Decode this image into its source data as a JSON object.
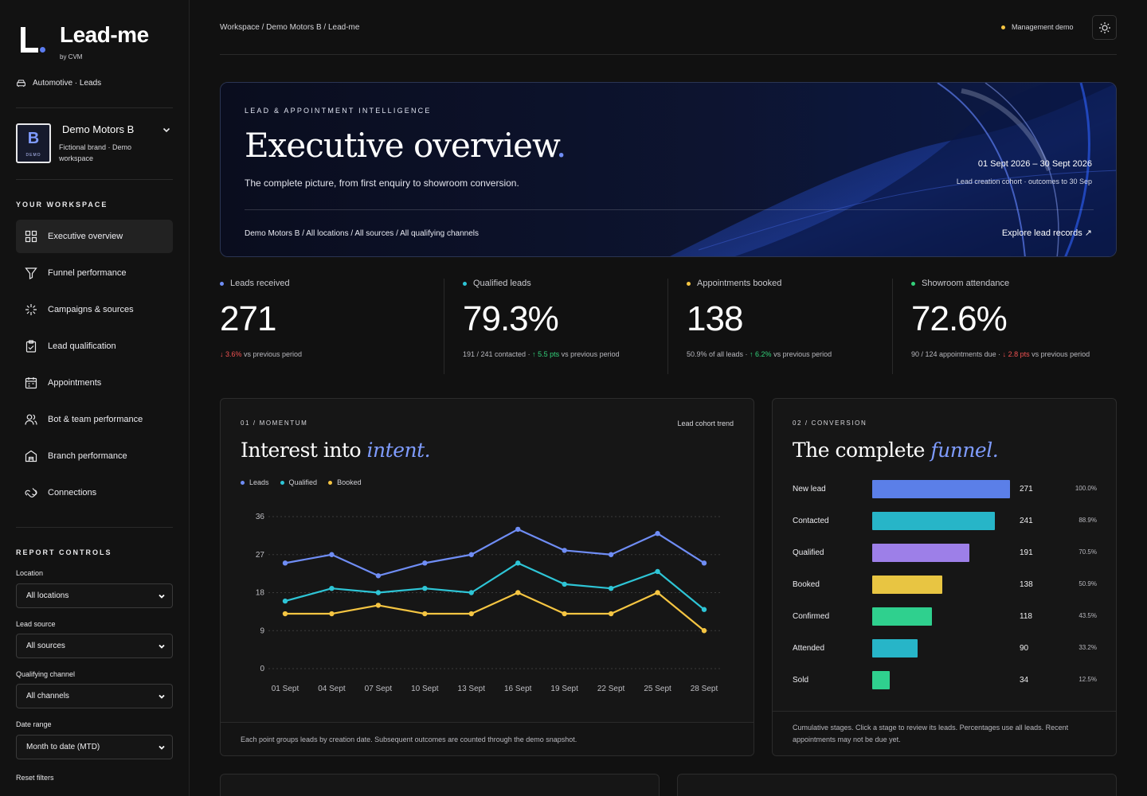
{
  "brand": {
    "name": "Lead-me",
    "by": "by CVM",
    "vertical": "Automotive · Leads"
  },
  "workspace": {
    "badge_letter": "B",
    "badge_tag": "DEMO",
    "name": "Demo Motors B",
    "subtitle": "Fictional brand · Demo workspace"
  },
  "sidebar": {
    "section_label": "YOUR WORKSPACE",
    "items": [
      {
        "label": "Executive overview",
        "icon": "grid-icon",
        "active": true
      },
      {
        "label": "Funnel performance",
        "icon": "filter-icon"
      },
      {
        "label": "Campaigns & sources",
        "icon": "sparkle-icon"
      },
      {
        "label": "Lead qualification",
        "icon": "clipboard-check-icon"
      },
      {
        "label": "Appointments",
        "icon": "calendar-icon"
      },
      {
        "label": "Bot & team performance",
        "icon": "users-icon"
      },
      {
        "label": "Branch performance",
        "icon": "building-icon"
      },
      {
        "label": "Connections",
        "icon": "link-icon"
      }
    ]
  },
  "controls": {
    "section_label": "REPORT CONTROLS",
    "location": {
      "label": "Location",
      "value": "All locations"
    },
    "lead_source": {
      "label": "Lead source",
      "value": "All sources"
    },
    "channel": {
      "label": "Qualifying channel",
      "value": "All channels"
    },
    "date_range": {
      "label": "Date range",
      "value": "Month to date (MTD)"
    },
    "reset": "Reset filters"
  },
  "topbar": {
    "breadcrumb": "Workspace / Demo Motors B / Lead-me",
    "mode": "Management demo"
  },
  "hero": {
    "eyebrow": "LEAD & APPOINTMENT INTELLIGENCE",
    "title": "Executive overview",
    "title_dot": ".",
    "subtitle": "The complete picture, from first enquiry to showroom conversion.",
    "date_range": "01 Sept 2026 – 30 Sept 2026",
    "cohort_note": "Lead creation cohort · outcomes to 30 Sep",
    "filters": "Demo Motors B / All locations / All sources / All qualifying channels",
    "link": "Explore lead records ↗"
  },
  "colors": {
    "leads": "#6f8df5",
    "qualified": "#2ec5d6",
    "booked": "#f5c542",
    "attendance": "#33d17a",
    "down": "#f05252",
    "up": "#33d17a"
  },
  "kpis": [
    {
      "label": "Leads received",
      "value": "271",
      "pre": "",
      "delta": "↓ 3.6%",
      "dir": "down",
      "post": " vs previous period",
      "color": "#6f8df5"
    },
    {
      "label": "Qualified leads",
      "value": "79.3%",
      "pre": "191 / 241 contacted · ",
      "delta": "↑ 5.5 pts",
      "dir": "up",
      "post": " vs previous period",
      "color": "#2ec5d6"
    },
    {
      "label": "Appointments booked",
      "value": "138",
      "pre": "50.9% of all leads · ",
      "delta": "↑ 6.2%",
      "dir": "up",
      "post": " vs previous period",
      "color": "#f5c542"
    },
    {
      "label": "Showroom attendance",
      "value": "72.6%",
      "pre": "90 / 124 appointments due · ",
      "delta": "↓ 2.8 pts",
      "dir": "down",
      "post": " vs previous period",
      "color": "#33d17a"
    }
  ],
  "momentum": {
    "eyebrow": "01 / MOMENTUM",
    "title": "Interest into",
    "title_em": "intent.",
    "tag": "Lead cohort trend",
    "footnote": "Each point groups leads by creation date. Subsequent outcomes are counted through the demo snapshot."
  },
  "chart_data": {
    "type": "line",
    "x": [
      "01 Sept",
      "04 Sept",
      "07 Sept",
      "10 Sept",
      "13 Sept",
      "16 Sept",
      "19 Sept",
      "22 Sept",
      "25 Sept",
      "28 Sept"
    ],
    "y_ticks": [
      0,
      9,
      18,
      27,
      36
    ],
    "ylim": [
      0,
      36
    ],
    "grid": true,
    "legend": "top-left",
    "series": [
      {
        "name": "Leads",
        "color": "#6f8df5",
        "values": [
          25,
          27,
          22,
          25,
          27,
          33,
          28,
          27,
          32,
          25
        ]
      },
      {
        "name": "Qualified",
        "color": "#2ec5d6",
        "values": [
          16,
          19,
          18,
          19,
          18,
          25,
          20,
          19,
          23,
          14
        ]
      },
      {
        "name": "Booked",
        "color": "#f5c542",
        "values": [
          13,
          13,
          15,
          13,
          13,
          18,
          13,
          13,
          18,
          9
        ]
      }
    ]
  },
  "funnel": {
    "eyebrow": "02 / CONVERSION",
    "title": "The complete",
    "title_em": "funnel.",
    "footnote": "Cumulative stages. Click a stage to review its leads. Percentages use all leads. Recent appointments may not be due yet.",
    "stages": [
      {
        "name": "New lead",
        "count": 271,
        "pct": "100.0%",
        "color": "#5b7fe8"
      },
      {
        "name": "Contacted",
        "count": 241,
        "pct": "88.9%",
        "color": "#27b5c8"
      },
      {
        "name": "Qualified",
        "count": 191,
        "pct": "70.5%",
        "color": "#9d7fe8"
      },
      {
        "name": "Booked",
        "count": 138,
        "pct": "50.9%",
        "color": "#e8c542"
      },
      {
        "name": "Confirmed",
        "count": 118,
        "pct": "43.5%",
        "color": "#2fd08e"
      },
      {
        "name": "Attended",
        "count": 90,
        "pct": "33.2%",
        "color": "#27b5c8"
      },
      {
        "name": "Sold",
        "count": 34,
        "pct": "12.5%",
        "color": "#2fd08e"
      }
    ]
  }
}
